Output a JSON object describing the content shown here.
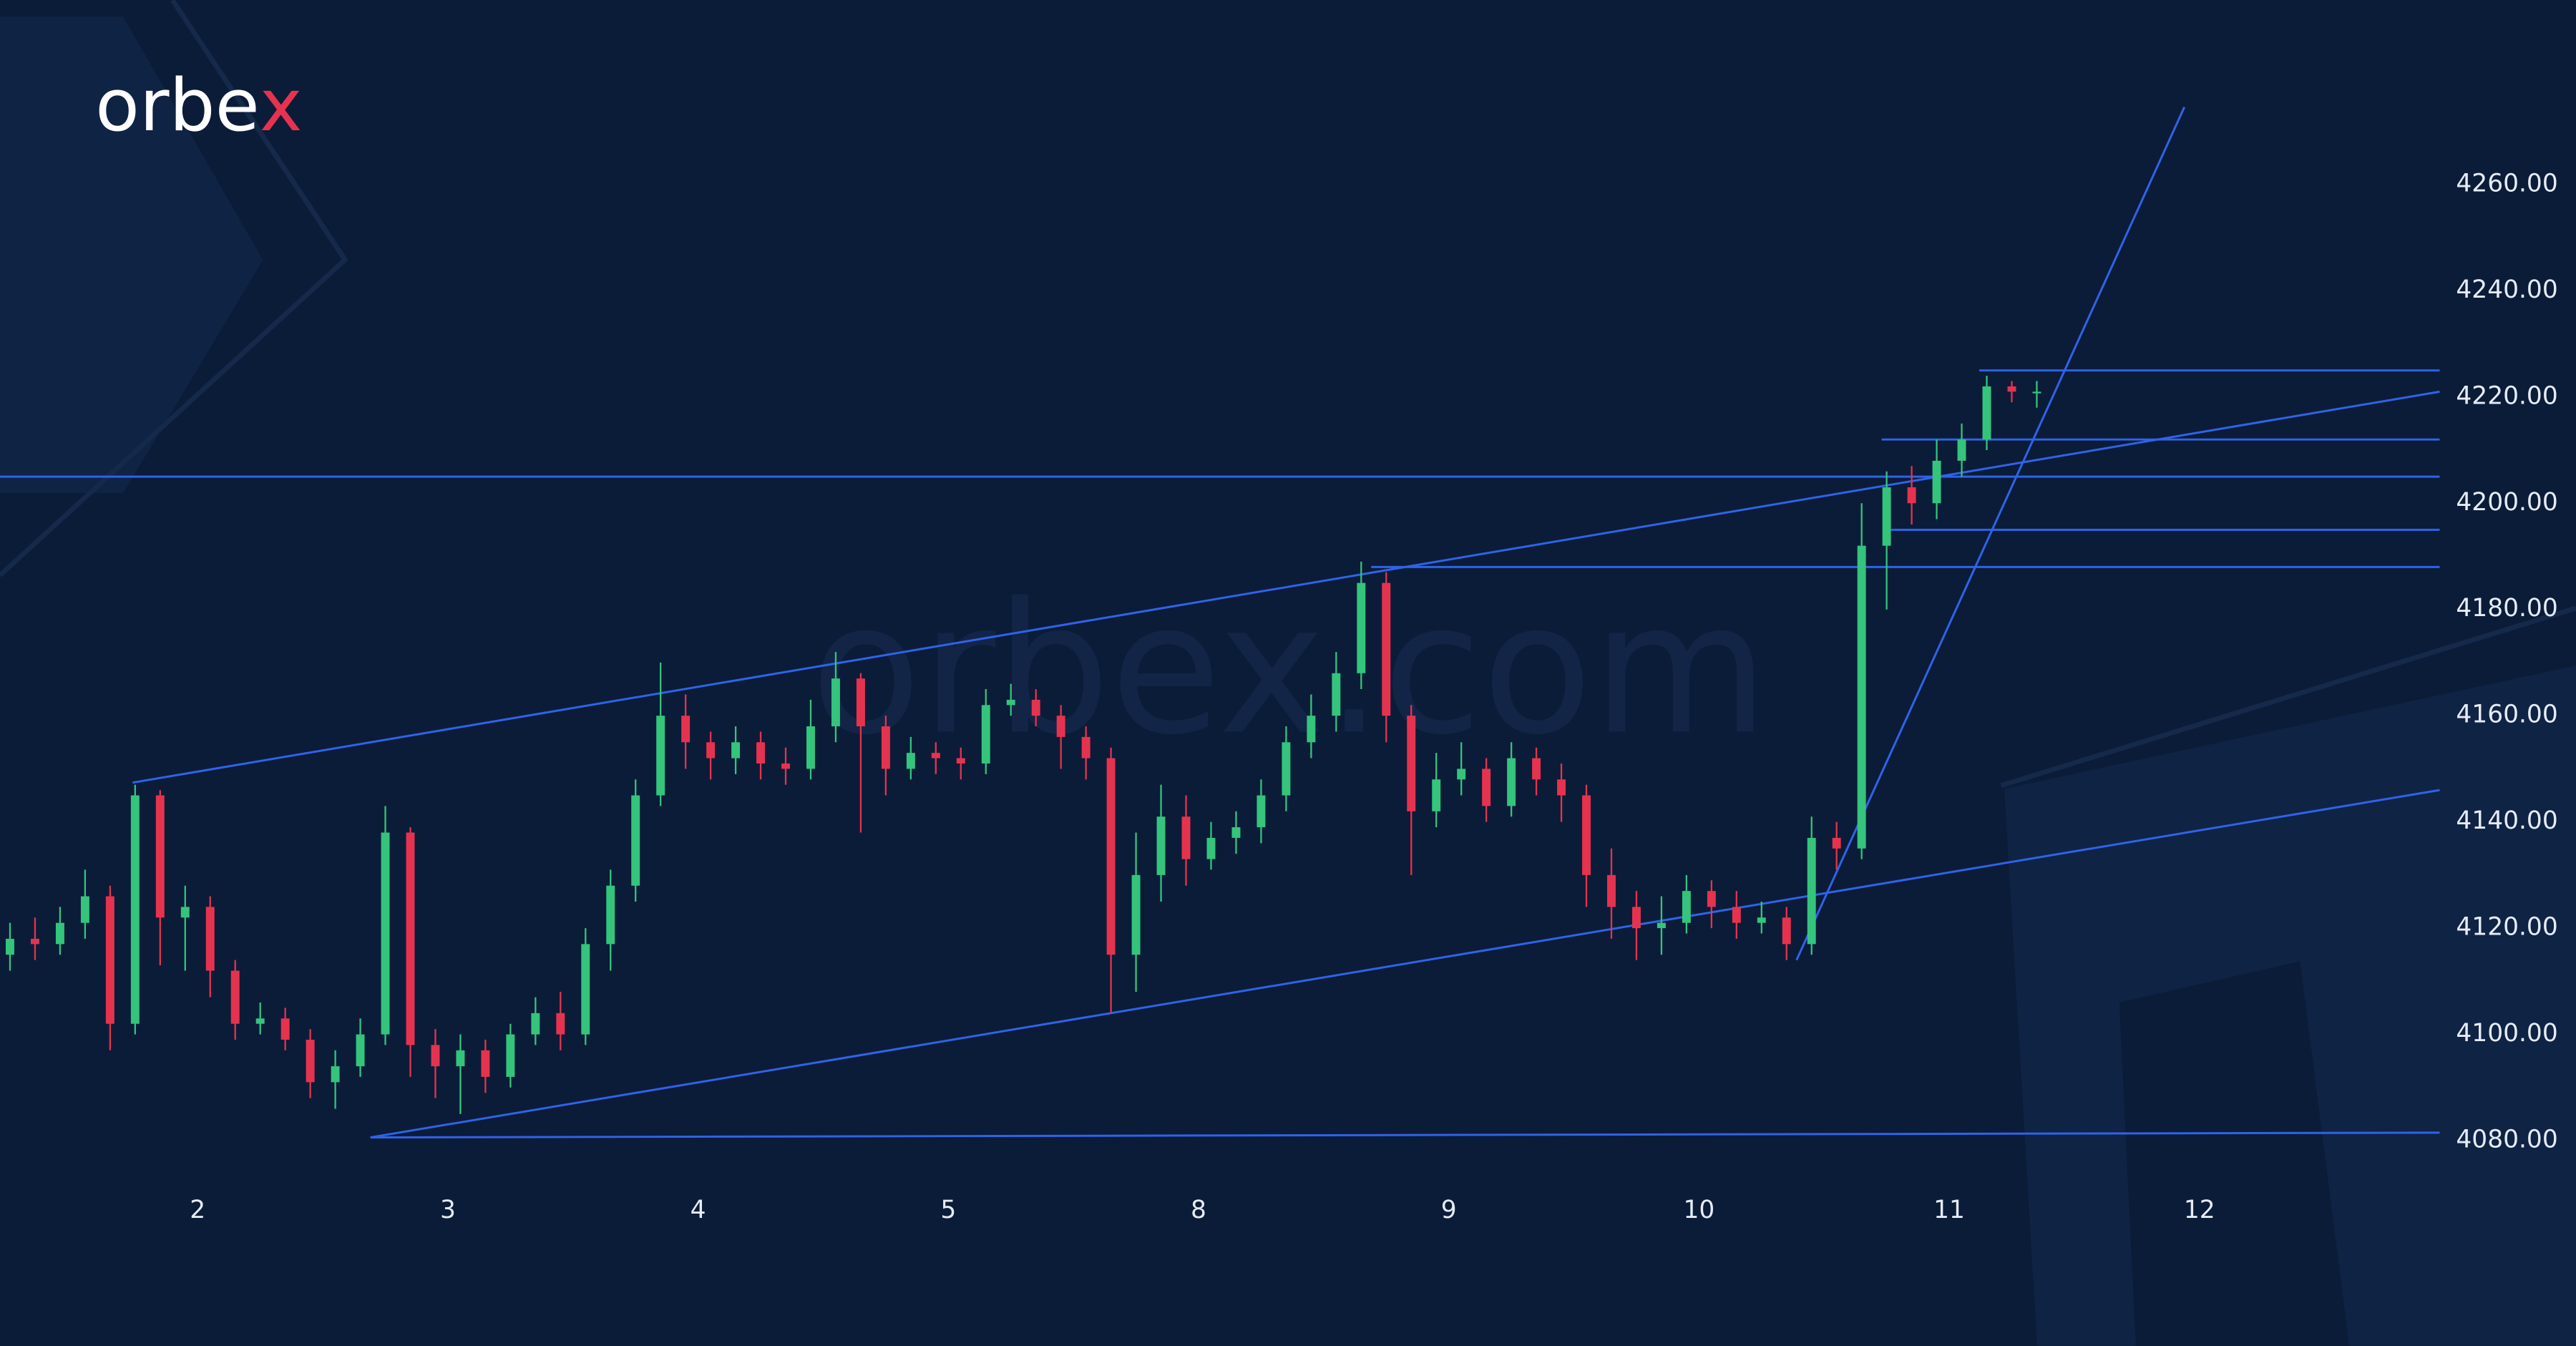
{
  "chart_data": {
    "type": "candlestick",
    "logo_parts": [
      "orbe",
      "x"
    ],
    "watermark": "orbex.com",
    "x": [
      -0.75,
      -0.65,
      -0.55,
      -0.45,
      -0.35,
      -0.25,
      -0.15,
      -0.05,
      0.05,
      0.15,
      0.25,
      0.35,
      0.45,
      0.55,
      0.65,
      0.75,
      0.85,
      0.95,
      1.05,
      1.15,
      1.25,
      1.35,
      1.45,
      1.55,
      1.65,
      1.75,
      1.85,
      1.95,
      2.05,
      2.15,
      2.25,
      2.35,
      2.45,
      2.55,
      2.65,
      2.75,
      2.85,
      2.95,
      3.05,
      3.15,
      3.25,
      3.35,
      3.45,
      3.55,
      3.65,
      3.75,
      3.85,
      3.95,
      4.05,
      4.15,
      4.25,
      4.35,
      4.45,
      4.55,
      4.65,
      4.75,
      4.85,
      4.95,
      5.05,
      5.15,
      5.25,
      5.35,
      5.45,
      5.55,
      5.65,
      5.75,
      5.85,
      5.95,
      6.05,
      6.15,
      6.25,
      6.35,
      6.45,
      6.55,
      6.65,
      6.75,
      6.85,
      6.95,
      7.05,
      7.15,
      7.25,
      7.35
    ],
    "open": [
      4115,
      4118,
      4117,
      4121,
      4126,
      4102,
      4145,
      4122,
      4124,
      4112,
      4102,
      4103,
      4099,
      4091,
      4094,
      4100,
      4138,
      4098,
      4094,
      4097,
      4092,
      4100,
      4104,
      4100,
      4117,
      4128,
      4145,
      4160,
      4155,
      4152,
      4155,
      4151,
      4150,
      4158,
      4167,
      4158,
      4150,
      4153,
      4152,
      4151,
      4162,
      4163,
      4160,
      4156,
      4152,
      4115,
      4130,
      4141,
      4133,
      4137,
      4139,
      4145,
      4155,
      4160,
      4168,
      4185,
      4160,
      4142,
      4148,
      4150,
      4143,
      4152,
      4148,
      4145,
      4130,
      4124,
      4120,
      4121,
      4127,
      4124,
      4121,
      4122,
      4117,
      4137,
      4135,
      4192,
      4203,
      4200,
      4208,
      4212,
      4222,
      4221
    ],
    "high": [
      4121,
      4122,
      4124,
      4131,
      4128,
      4147,
      4146,
      4128,
      4126,
      4114,
      4106,
      4105,
      4101,
      4097,
      4103,
      4143,
      4139,
      4101,
      4100,
      4099,
      4102,
      4107,
      4108,
      4120,
      4131,
      4148,
      4170,
      4164,
      4157,
      4158,
      4157,
      4154,
      4163,
      4172,
      4168,
      4160,
      4156,
      4155,
      4154,
      4165,
      4166,
      4165,
      4162,
      4158,
      4154,
      4138,
      4147,
      4145,
      4140,
      4142,
      4148,
      4158,
      4164,
      4172,
      4189,
      4187,
      4162,
      4153,
      4155,
      4152,
      4155,
      4154,
      4151,
      4147,
      4135,
      4127,
      4126,
      4130,
      4129,
      4127,
      4125,
      4124,
      4141,
      4140,
      4200,
      4206,
      4207,
      4212,
      4215,
      4224,
      4223,
      4223
    ],
    "low": [
      4112,
      4114,
      4115,
      4118,
      4097,
      4100,
      4113,
      4112,
      4107,
      4099,
      4100,
      4097,
      4088,
      4086,
      4092,
      4098,
      4092,
      4088,
      4085,
      4089,
      4090,
      4098,
      4097,
      4098,
      4112,
      4125,
      4143,
      4150,
      4148,
      4149,
      4148,
      4147,
      4148,
      4155,
      4138,
      4145,
      4148,
      4149,
      4148,
      4149,
      4160,
      4158,
      4150,
      4148,
      4104,
      4108,
      4125,
      4128,
      4131,
      4134,
      4136,
      4142,
      4152,
      4157,
      4165,
      4155,
      4130,
      4139,
      4145,
      4140,
      4141,
      4145,
      4140,
      4124,
      4118,
      4114,
      4115,
      4119,
      4120,
      4118,
      4119,
      4114,
      4115,
      4131,
      4133,
      4180,
      4196,
      4197,
      4205,
      4210,
      4219,
      4218
    ],
    "close": [
      4118,
      4117,
      4121,
      4126,
      4102,
      4145,
      4122,
      4124,
      4112,
      4102,
      4103,
      4099,
      4091,
      4094,
      4100,
      4138,
      4098,
      4094,
      4097,
      4092,
      4100,
      4104,
      4100,
      4117,
      4128,
      4145,
      4160,
      4155,
      4152,
      4155,
      4151,
      4150,
      4158,
      4167,
      4158,
      4150,
      4153,
      4152,
      4151,
      4162,
      4163,
      4160,
      4156,
      4152,
      4115,
      4130,
      4141,
      4133,
      4137,
      4139,
      4145,
      4155,
      4160,
      4168,
      4185,
      4160,
      4142,
      4148,
      4150,
      4143,
      4152,
      4148,
      4145,
      4130,
      4124,
      4120,
      4121,
      4127,
      4124,
      4121,
      4122,
      4117,
      4137,
      4135,
      4192,
      4203,
      4200,
      4208,
      4212,
      4222,
      4221,
      4221
    ],
    "up_color": "#34c47c",
    "down_color": "#e5334f",
    "line_color": "#2f63e8",
    "drawings": [
      {
        "x": [
          -0.79,
          8.96
        ],
        "y": [
          4205,
          4205
        ]
      },
      {
        "x": [
          4.69,
          8.96
        ],
        "y": [
          4188,
          4188
        ]
      },
      {
        "x": [
          6.76,
          8.96
        ],
        "y": [
          4195,
          4195
        ]
      },
      {
        "x": [
          6.73,
          8.96
        ],
        "y": [
          4212,
          4212
        ]
      },
      {
        "x": [
          7.12,
          8.96
        ],
        "y": [
          4225,
          4225
        ]
      },
      {
        "x": [
          0.69,
          8.96
        ],
        "y": [
          4080.6,
          4081.5
        ]
      },
      {
        "x": [
          -0.26,
          8.96
        ],
        "y": [
          4147.4,
          4221
        ]
      },
      {
        "x": [
          0.69,
          8.96
        ],
        "y": [
          4080.6,
          4146
        ]
      },
      {
        "x": [
          6.39,
          7.94
        ],
        "y": [
          4114,
          4274.6
        ]
      },
      {
        "x": [
          -0.26,
          -0.26
        ],
        "y": [
          4147.4,
          4147.4
        ]
      }
    ],
    "xlim": [
      -0.79,
      8.96
    ],
    "ylim": [
      4072,
      4294.7
    ],
    "xticks": [
      {
        "value": 0,
        "label": "2"
      },
      {
        "value": 1,
        "label": "3"
      },
      {
        "value": 2,
        "label": "4"
      },
      {
        "value": 3,
        "label": "5"
      },
      {
        "value": 4,
        "label": "8"
      },
      {
        "value": 5,
        "label": "9"
      },
      {
        "value": 6,
        "label": "10"
      },
      {
        "value": 7,
        "label": "11"
      },
      {
        "value": 8,
        "label": "12"
      }
    ],
    "yticks": [
      {
        "value": 4080,
        "label": "4080.00"
      },
      {
        "value": 4100,
        "label": "4100.00"
      },
      {
        "value": 4120,
        "label": "4120.00"
      },
      {
        "value": 4140,
        "label": "4140.00"
      },
      {
        "value": 4160,
        "label": "4160.00"
      },
      {
        "value": 4180,
        "label": "4180.00"
      },
      {
        "value": 4200,
        "label": "4200.00"
      },
      {
        "value": 4220,
        "label": "4220.00"
      },
      {
        "value": 4240,
        "label": "4240.00"
      },
      {
        "value": 4260,
        "label": "4260.00"
      }
    ]
  }
}
